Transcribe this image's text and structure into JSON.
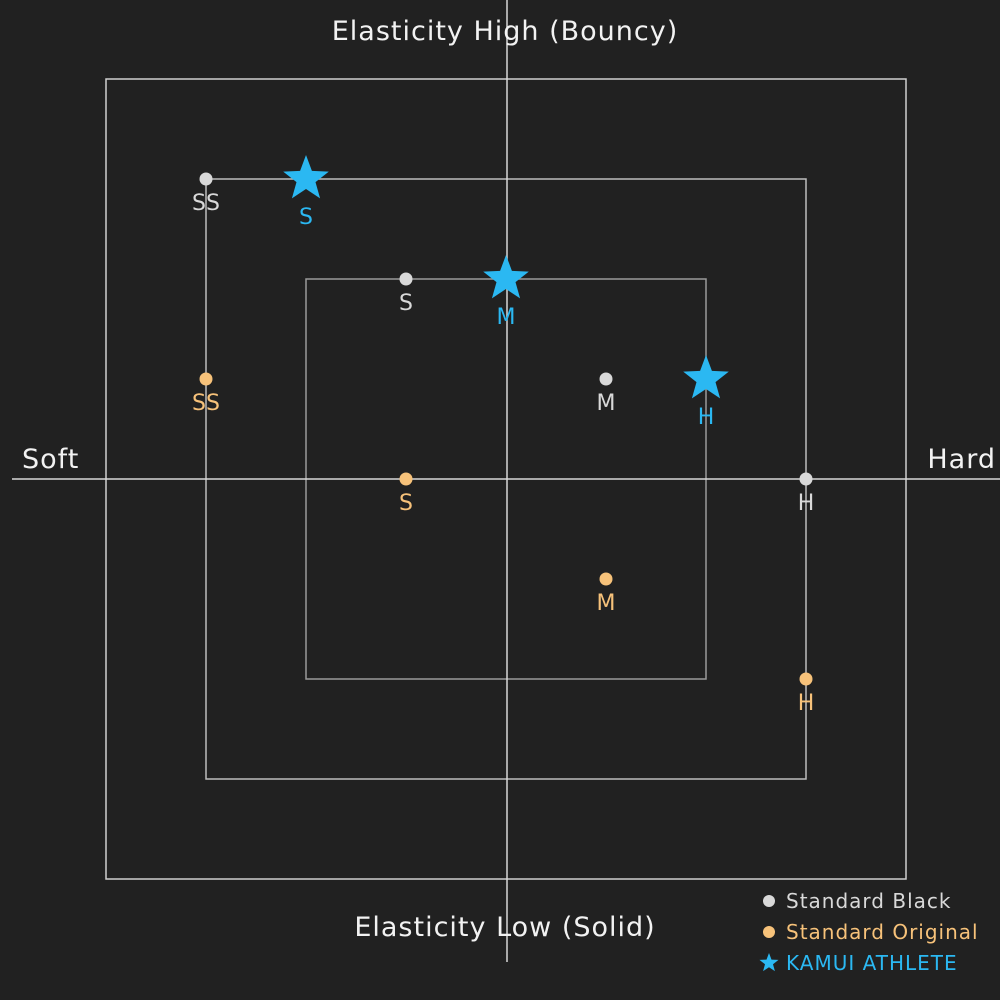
{
  "chart_data": {
    "type": "scatter",
    "x_axis": {
      "negative_label": "Soft",
      "positive_label": "Hard",
      "range": [
        -4,
        4
      ]
    },
    "y_axis": {
      "positive_label": "Elasticity High (Bouncy)",
      "negative_label": "Elasticity Low (Solid)",
      "range": [
        -4,
        4
      ]
    },
    "grid": false,
    "reference_squares_half_size": [
      2,
      3,
      4
    ],
    "legend_placement": "bottom-right",
    "series": [
      {
        "name": "Standard Black",
        "marker": "circle",
        "color": "#d9d9d9",
        "points": [
          {
            "label": "SS",
            "x": -3,
            "y": 3
          },
          {
            "label": "S",
            "x": -1,
            "y": 2
          },
          {
            "label": "M",
            "x": 1,
            "y": 1
          },
          {
            "label": "H",
            "x": 3,
            "y": 0
          }
        ]
      },
      {
        "name": "Standard Original",
        "marker": "circle",
        "color": "#f7c27a",
        "points": [
          {
            "label": "SS",
            "x": -3,
            "y": 1
          },
          {
            "label": "S",
            "x": -1,
            "y": 0
          },
          {
            "label": "M",
            "x": 1,
            "y": -1
          },
          {
            "label": "H",
            "x": 3,
            "y": -2
          }
        ]
      },
      {
        "name": "KAMUI ATHLETE",
        "marker": "star",
        "color": "#2bb8f2",
        "points": [
          {
            "label": "S",
            "x": -2,
            "y": 3
          },
          {
            "label": "M",
            "x": 0,
            "y": 2
          },
          {
            "label": "H",
            "x": 2,
            "y": 1
          }
        ]
      }
    ]
  }
}
